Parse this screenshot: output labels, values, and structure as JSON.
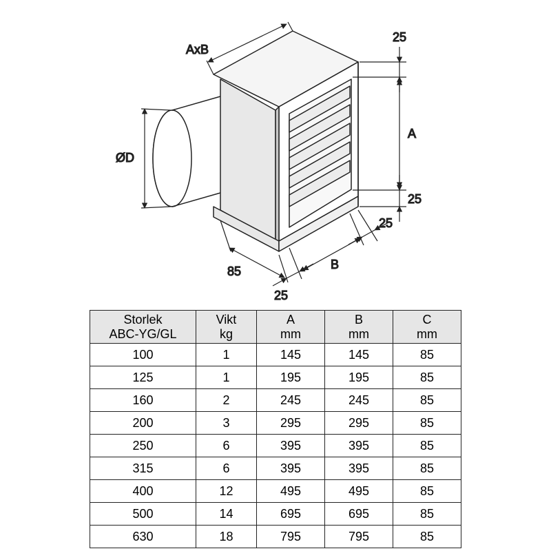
{
  "diagram": {
    "labels": {
      "AxB": "AxB",
      "diameter": "ØD",
      "A": "A",
      "B": "B",
      "top25": "25",
      "midTop25": "25",
      "right25": "25",
      "depth85": "85",
      "bottom25": "25"
    },
    "colors": {
      "line": "#222222",
      "fill_light": "#f5f5f5",
      "fill_mid": "#e8e8e8",
      "fill_dark": "#c8c8c8",
      "background": "#ffffff"
    },
    "line_width": 1.5
  },
  "spec_table": {
    "type": "table",
    "columns": [
      {
        "line1": "Storlek",
        "line2": "ABC-YG/GL"
      },
      {
        "line1": "Vikt",
        "line2": "kg"
      },
      {
        "line1": "A",
        "line2": "mm"
      },
      {
        "line1": "B",
        "line2": "mm"
      },
      {
        "line1": "C",
        "line2": "mm"
      }
    ],
    "rows": [
      [
        "100",
        "1",
        "145",
        "145",
        "85"
      ],
      [
        "125",
        "1",
        "195",
        "195",
        "85"
      ],
      [
        "160",
        "2",
        "245",
        "245",
        "85"
      ],
      [
        "200",
        "3",
        "295",
        "295",
        "85"
      ],
      [
        "250",
        "6",
        "395",
        "395",
        "85"
      ],
      [
        "315",
        "6",
        "395",
        "395",
        "85"
      ],
      [
        "400",
        "12",
        "495",
        "495",
        "85"
      ],
      [
        "500",
        "14",
        "695",
        "695",
        "85"
      ],
      [
        "630",
        "18",
        "795",
        "795",
        "85"
      ]
    ],
    "header_bg": "#e6e6e6",
    "border_color": "#222222",
    "font_size": 18
  }
}
